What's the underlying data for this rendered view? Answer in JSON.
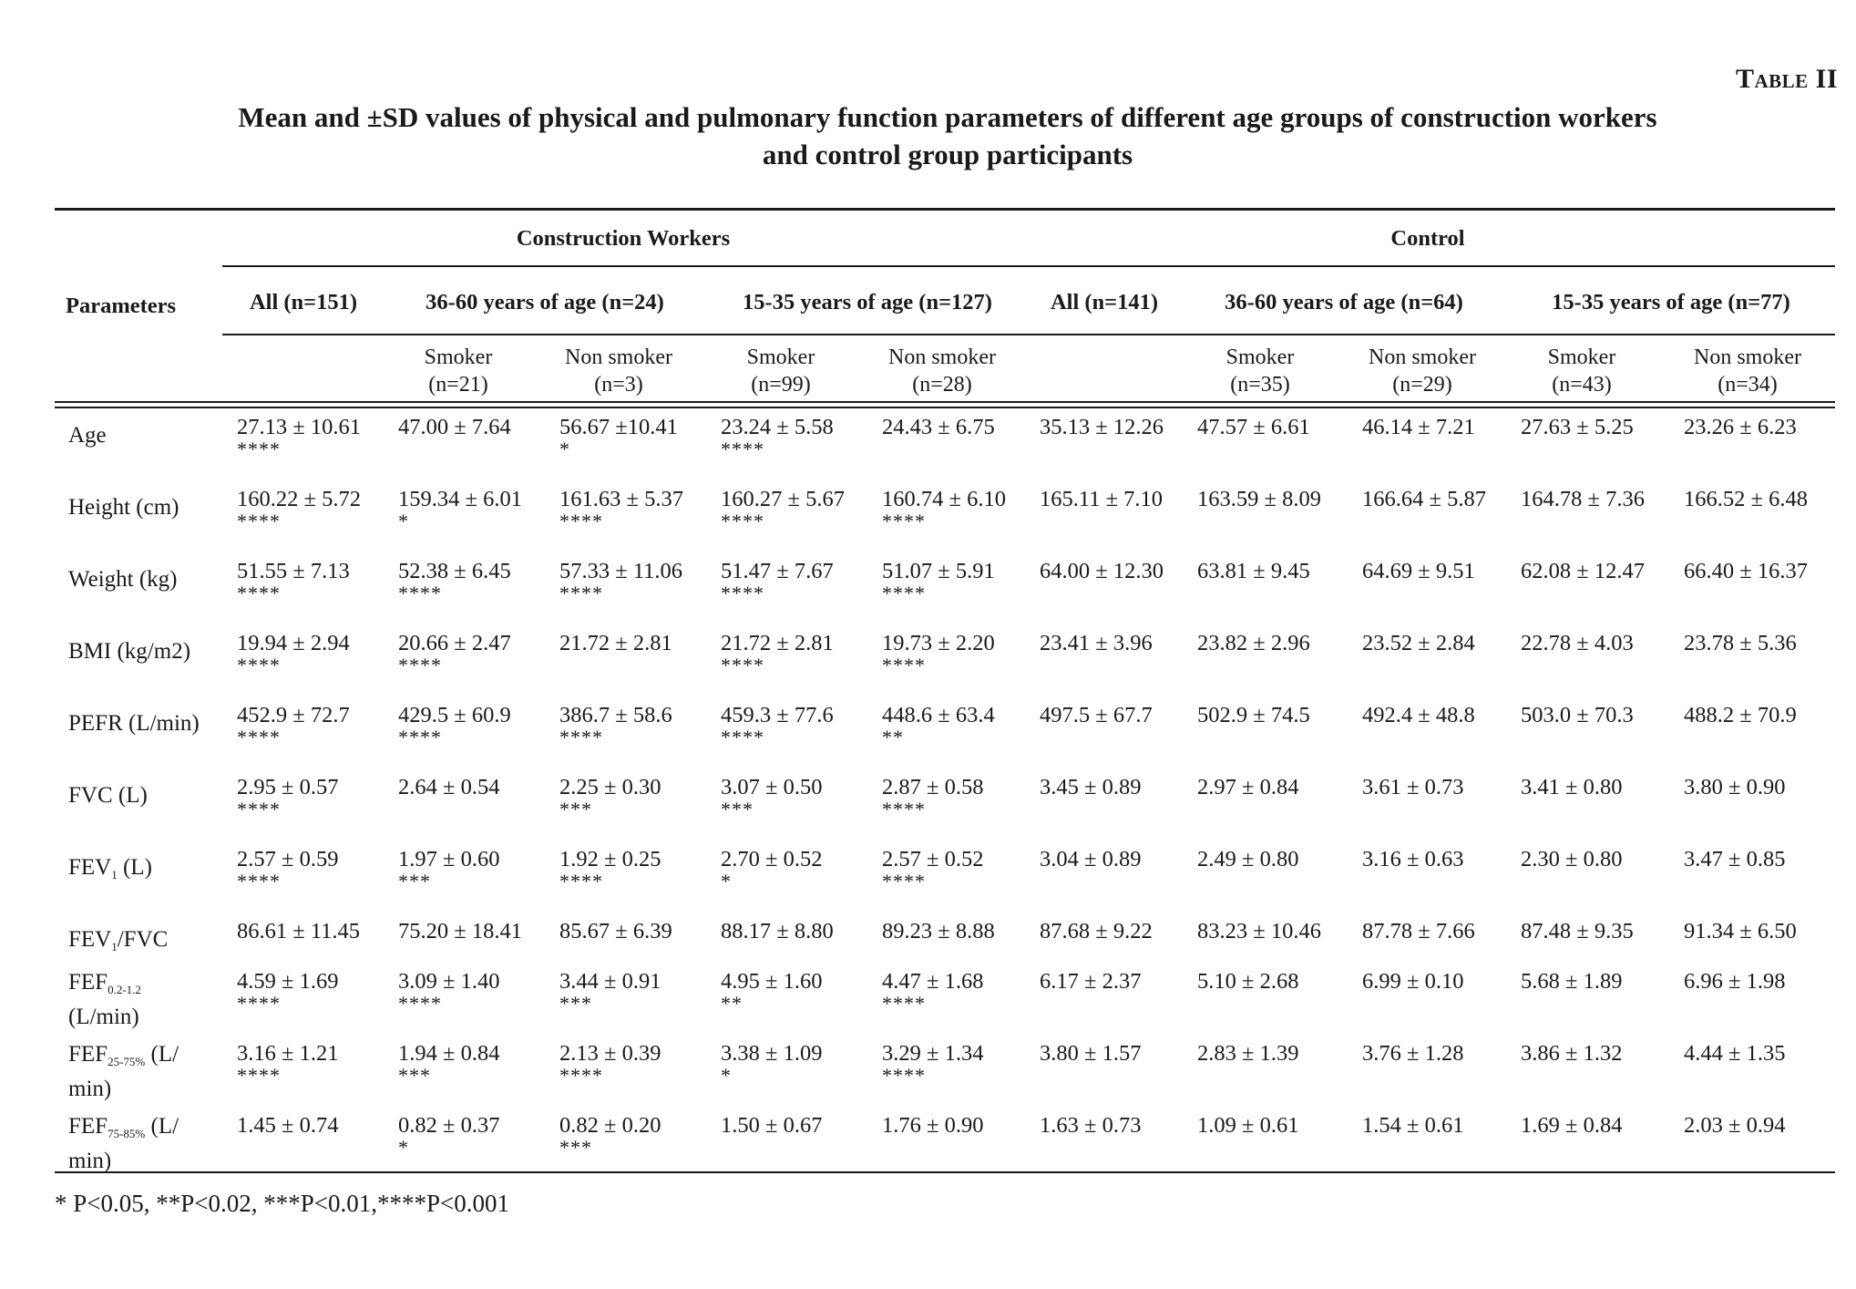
{
  "table_label": "Table II",
  "caption": [
    "Mean and ±SD values of physical and pulmonary function parameters of different age groups of construction workers",
    "and control group participants"
  ],
  "header": {
    "parameters": "Parameters",
    "groups": [
      "Construction Workers",
      "Control"
    ],
    "subgroups": [
      "All (n=151)",
      "36-60 years of age (n=24)",
      "15-35 years of age (n=127)",
      "All (n=141)",
      "36-60 years of age (n=64)",
      "15-35 years of age (n=77)"
    ],
    "status": [
      [
        "Smoker",
        "(n=21)"
      ],
      [
        "Non smoker",
        "(n=3)"
      ],
      [
        "Smoker",
        "(n=99)"
      ],
      [
        "Non smoker",
        "(n=28)"
      ],
      [
        "Smoker",
        "(n=35)"
      ],
      [
        "Non smoker",
        "(n=29)"
      ],
      [
        "Smoker",
        "(n=43)"
      ],
      [
        "Non smoker",
        "(n=34)"
      ]
    ]
  },
  "rows": [
    {
      "param": [
        "Age"
      ],
      "cells": [
        [
          "27.13 ± 10.61",
          "****"
        ],
        [
          "47.00 ± 7.64",
          ""
        ],
        [
          "56.67 ±10.41",
          "*"
        ],
        [
          "23.24 ± 5.58",
          "****"
        ],
        [
          "24.43 ± 6.75",
          ""
        ],
        [
          "35.13 ± 12.26",
          ""
        ],
        [
          "47.57 ± 6.61",
          ""
        ],
        [
          "46.14 ± 7.21",
          ""
        ],
        [
          "27.63 ± 5.25",
          ""
        ],
        [
          "23.26 ± 6.23",
          ""
        ]
      ]
    },
    {
      "param": [
        "Height (cm)"
      ],
      "cells": [
        [
          "160.22 ± 5.72",
          "****"
        ],
        [
          "159.34 ± 6.01",
          "*"
        ],
        [
          "161.63 ± 5.37",
          "****"
        ],
        [
          "160.27 ± 5.67",
          "****"
        ],
        [
          "160.74 ± 6.10",
          "****"
        ],
        [
          "165.11 ± 7.10",
          ""
        ],
        [
          "163.59 ± 8.09",
          ""
        ],
        [
          "166.64 ± 5.87",
          ""
        ],
        [
          "164.78 ± 7.36",
          ""
        ],
        [
          "166.52 ± 6.48",
          ""
        ]
      ]
    },
    {
      "param": [
        "Weight (kg)"
      ],
      "cells": [
        [
          "51.55 ± 7.13",
          "****"
        ],
        [
          "52.38 ± 6.45",
          "****"
        ],
        [
          "57.33 ± 11.06",
          "****"
        ],
        [
          "51.47 ± 7.67",
          "****"
        ],
        [
          "51.07 ± 5.91",
          "****"
        ],
        [
          "64.00 ± 12.30",
          ""
        ],
        [
          "63.81 ± 9.45",
          ""
        ],
        [
          "64.69 ± 9.51",
          ""
        ],
        [
          "62.08 ± 12.47",
          ""
        ],
        [
          "66.40 ± 16.37",
          ""
        ]
      ]
    },
    {
      "param": [
        "BMI (kg/m2)"
      ],
      "cells": [
        [
          "19.94 ± 2.94",
          "****"
        ],
        [
          "20.66 ± 2.47",
          "****"
        ],
        [
          "21.72 ± 2.81",
          ""
        ],
        [
          "21.72 ± 2.81",
          "****"
        ],
        [
          "19.73 ± 2.20",
          "****"
        ],
        [
          "23.41 ± 3.96",
          ""
        ],
        [
          "23.82 ± 2.96",
          ""
        ],
        [
          "23.52 ± 2.84",
          ""
        ],
        [
          "22.78 ± 4.03",
          ""
        ],
        [
          "23.78 ± 5.36",
          ""
        ]
      ]
    },
    {
      "param": [
        "PEFR (L/min)"
      ],
      "cells": [
        [
          "452.9 ± 72.7",
          "****"
        ],
        [
          "429.5 ± 60.9",
          "****"
        ],
        [
          "386.7 ± 58.6",
          "****"
        ],
        [
          "459.3 ± 77.6",
          "****"
        ],
        [
          "448.6 ± 63.4",
          "**"
        ],
        [
          "497.5 ± 67.7",
          ""
        ],
        [
          "502.9 ± 74.5",
          ""
        ],
        [
          "492.4 ± 48.8",
          ""
        ],
        [
          "503.0 ± 70.3",
          ""
        ],
        [
          "488.2 ± 70.9",
          ""
        ]
      ]
    },
    {
      "param": [
        "FVC (L)"
      ],
      "cells": [
        [
          "2.95 ± 0.57",
          "****"
        ],
        [
          "2.64 ± 0.54",
          ""
        ],
        [
          "2.25 ± 0.30",
          "***"
        ],
        [
          "3.07 ± 0.50",
          "***"
        ],
        [
          "2.87 ± 0.58",
          "****"
        ],
        [
          "3.45 ± 0.89",
          ""
        ],
        [
          "2.97 ± 0.84",
          ""
        ],
        [
          "3.61 ± 0.73",
          ""
        ],
        [
          "3.41 ± 0.80",
          ""
        ],
        [
          "3.80 ± 0.90",
          ""
        ]
      ]
    },
    {
      "param": [
        "FEV",
        "1",
        " (L)"
      ],
      "cells": [
        [
          "2.57 ± 0.59",
          "****"
        ],
        [
          "1.97 ± 0.60",
          "***"
        ],
        [
          "1.92 ± 0.25",
          "****"
        ],
        [
          "2.70 ± 0.52",
          "*"
        ],
        [
          "2.57 ± 0.52",
          "****"
        ],
        [
          "3.04 ± 0.89",
          ""
        ],
        [
          "2.49 ± 0.80",
          ""
        ],
        [
          "3.16 ± 0.63",
          ""
        ],
        [
          "2.30 ± 0.80",
          ""
        ],
        [
          "3.47 ± 0.85",
          ""
        ]
      ]
    },
    {
      "param": [
        "FEV",
        "1",
        "/FVC"
      ],
      "cells": [
        [
          "86.61 ± 11.45",
          ""
        ],
        [
          "75.20 ± 18.41",
          ""
        ],
        [
          "85.67 ± 6.39",
          ""
        ],
        [
          "88.17 ± 8.80",
          ""
        ],
        [
          "89.23 ± 8.88",
          ""
        ],
        [
          "87.68 ± 9.22",
          ""
        ],
        [
          "83.23 ± 10.46",
          ""
        ],
        [
          "87.78 ± 7.66",
          ""
        ],
        [
          "87.48 ± 9.35",
          ""
        ],
        [
          "91.34 ± 6.50",
          ""
        ]
      ]
    },
    {
      "param": [
        "FEF",
        "0.2-1.2",
        "",
        "(L/min)"
      ],
      "cells": [
        [
          "4.59 ± 1.69",
          "****"
        ],
        [
          "3.09 ± 1.40",
          "****"
        ],
        [
          "3.44 ± 0.91",
          "***"
        ],
        [
          "4.95 ± 1.60",
          "**"
        ],
        [
          "4.47 ± 1.68",
          "****"
        ],
        [
          "6.17 ± 2.37",
          ""
        ],
        [
          "5.10 ± 2.68",
          ""
        ],
        [
          "6.99 ± 0.10",
          ""
        ],
        [
          "5.68 ± 1.89",
          ""
        ],
        [
          "6.96 ± 1.98",
          ""
        ]
      ]
    },
    {
      "param": [
        "FEF",
        "25-75%",
        " (L/",
        "min)"
      ],
      "cells": [
        [
          "3.16 ± 1.21",
          "****"
        ],
        [
          "1.94 ± 0.84",
          "***"
        ],
        [
          "2.13 ± 0.39",
          "****"
        ],
        [
          "3.38 ± 1.09",
          "*"
        ],
        [
          "3.29 ± 1.34",
          "****"
        ],
        [
          "3.80 ± 1.57",
          ""
        ],
        [
          "2.83 ± 1.39",
          ""
        ],
        [
          "3.76 ± 1.28",
          ""
        ],
        [
          "3.86 ± 1.32",
          ""
        ],
        [
          "4.44 ± 1.35",
          ""
        ]
      ]
    },
    {
      "param": [
        "FEF",
        "75-85%",
        " (L/",
        "min)"
      ],
      "cells": [
        [
          "1.45 ± 0.74",
          ""
        ],
        [
          "0.82 ± 0.37",
          "*"
        ],
        [
          "0.82 ± 0.20",
          "***"
        ],
        [
          "1.50 ± 0.67",
          ""
        ],
        [
          "1.76 ± 0.90",
          ""
        ],
        [
          "1.63 ± 0.73",
          ""
        ],
        [
          "1.09 ± 0.61",
          ""
        ],
        [
          "1.54 ± 0.61",
          ""
        ],
        [
          "1.69 ± 0.84",
          ""
        ],
        [
          "2.03 ± 0.94",
          ""
        ]
      ]
    }
  ],
  "footnote": "* P<0.05,  **P<0.02, ***P<0.01,****P<0.001"
}
